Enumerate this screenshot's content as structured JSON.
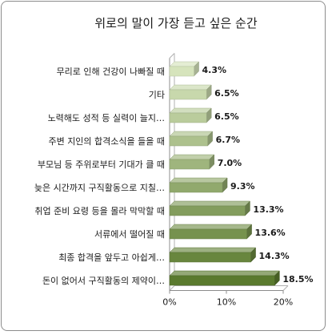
{
  "chart_data": {
    "type": "bar",
    "orientation": "horizontal",
    "title": "위로의 말이 가장 듣고 싶은 순간",
    "categories": [
      "무리로 인해 건강이 나빠질 때",
      "기타",
      "노력해도 성적 등 실력이 늘지…",
      "주변 지인의 합격소식을 들을 때",
      "부모님 등 주위로부터 기대가 클 때",
      "늦은 시간까지 구직활동으로 지칠…",
      "취업 준비 요령 등을 몰라 막막할 때",
      "서류에서 떨어질 때",
      "최종 합격을 앞두고 아쉽게…",
      "돈이 없어서 구직활동의 제약이…"
    ],
    "values": [
      4.3,
      6.5,
      6.5,
      6.7,
      7.0,
      9.3,
      13.3,
      13.6,
      14.3,
      18.5
    ],
    "value_labels": [
      "4.3%",
      "6.5%",
      "6.5%",
      "6.7%",
      "7.0%",
      "9.3%",
      "13.3%",
      "13.6%",
      "14.3%",
      "18.5%"
    ],
    "xlim": [
      0,
      20
    ],
    "xticks": [
      0,
      10,
      20
    ],
    "xtick_labels": [
      "0%",
      "10%",
      "20%"
    ],
    "grid": false,
    "legend": "none",
    "colors": {
      "bar_light": "#d6e4bc",
      "bar_dark": "#5a7a2e",
      "bar_top": "#eef4e2",
      "bar_side": "#4a6424",
      "axis": "#8c8c8c",
      "wall": "#b0b0b0"
    }
  }
}
